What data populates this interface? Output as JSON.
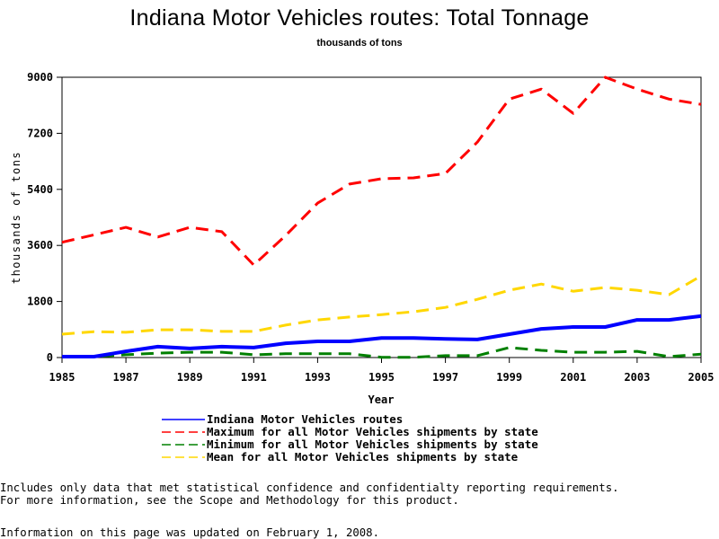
{
  "chart_data": {
    "type": "line",
    "title": "Indiana Motor Vehicles routes: Total Tonnage",
    "subtitle": "thousands of tons",
    "xlabel": "Year",
    "ylabel": "thousands of tons",
    "xlim": [
      1985,
      2005
    ],
    "ylim": [
      0,
      9000
    ],
    "x_ticks": [
      1985,
      1987,
      1989,
      1991,
      1993,
      1995,
      1997,
      1999,
      2001,
      2003,
      2005
    ],
    "y_ticks": [
      0,
      1800,
      3600,
      5400,
      7200,
      9000
    ],
    "grid": false,
    "legend_position": "bottom",
    "x": [
      1985,
      1986,
      1987,
      1988,
      1989,
      1990,
      1991,
      1992,
      1993,
      1994,
      1995,
      1996,
      1997,
      1998,
      1999,
      2000,
      2001,
      2002,
      2003,
      2004,
      2005
    ],
    "series": [
      {
        "name": "Indiana Motor Vehicles routes",
        "color": "#0000ff",
        "style": "solid",
        "values": [
          30,
          30,
          200,
          350,
          290,
          350,
          320,
          460,
          520,
          520,
          630,
          630,
          600,
          580,
          750,
          920,
          980,
          980,
          1210,
          1210,
          1330
        ]
      },
      {
        "name": "Maximum for all Motor Vehicles shipments by state",
        "color": "#ff0000",
        "style": "dashed",
        "values": [
          3700,
          3940,
          4180,
          3870,
          4180,
          4040,
          2970,
          3920,
          4960,
          5570,
          5740,
          5770,
          5910,
          6920,
          8300,
          8620,
          7840,
          9000,
          8620,
          8300,
          8130
        ]
      },
      {
        "name": "Minimum for all Motor Vehicles shipments by state",
        "color": "#008000",
        "style": "dashed",
        "values": [
          30,
          30,
          90,
          140,
          170,
          170,
          90,
          120,
          120,
          120,
          10,
          10,
          60,
          60,
          320,
          230,
          170,
          170,
          200,
          30,
          110
        ]
      },
      {
        "name": "Mean for all Motor Vehicles shipments by state",
        "color": "#ffd700",
        "style": "dashed",
        "values": [
          750,
          830,
          810,
          890,
          890,
          840,
          840,
          1040,
          1210,
          1300,
          1380,
          1470,
          1610,
          1870,
          2160,
          2360,
          2130,
          2250,
          2160,
          2020,
          2620
        ]
      }
    ]
  },
  "notes": {
    "line1": "Includes only data that met statistical confidence and confidentialty reporting requirements.",
    "line2": "For more information, see the Scope and Methodology for this product.",
    "updated": "Information on this page was updated on February 1, 2008."
  }
}
